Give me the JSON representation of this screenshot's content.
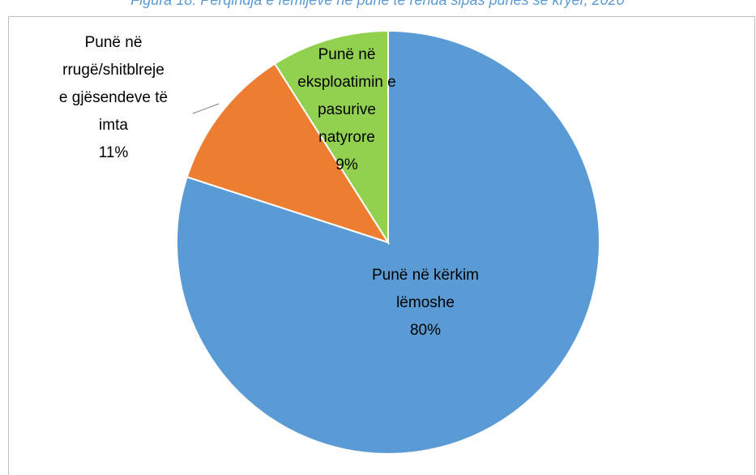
{
  "chart_data": {
    "type": "pie",
    "title": "Figura 18: Përqindja e fëmijëve në punë të rënda sipas punës së kryer, 2020",
    "categories": [
      "Punë në kërkim lëmoshe",
      "Punë në rrugë/shitblreje e gjësendeve të imta",
      "Punë në eksploatimin e pasurive natyrore"
    ],
    "values": [
      80,
      11,
      9
    ],
    "value_labels": [
      "80%",
      "11%",
      "9%"
    ],
    "colors": [
      "#5b9bd5",
      "#ed7d31",
      "#92d050"
    ]
  }
}
